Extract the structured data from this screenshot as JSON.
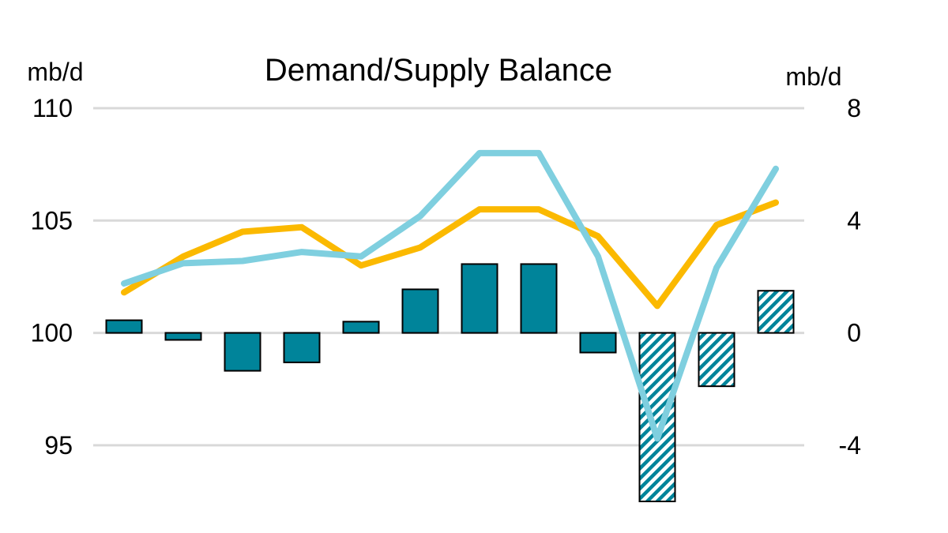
{
  "chart_data": {
    "type": "bar+line",
    "title": "Demand/Supply Balance",
    "left_axis": {
      "unit": "mb/d",
      "ylim": [
        92.5,
        110
      ],
      "ticks": [
        95,
        100,
        105,
        110
      ],
      "tick_labels": [
        "95",
        "100",
        "105",
        "110"
      ]
    },
    "right_axis": {
      "unit": "mb/d",
      "ylim": [
        -6,
        8
      ],
      "ticks": [
        -4,
        0,
        4,
        8
      ],
      "tick_labels": [
        "-4",
        "0",
        "4",
        "8"
      ]
    },
    "grid": true,
    "categories_count": 12,
    "series": [
      {
        "kind": "bar",
        "axis": "right",
        "color": "#00849a",
        "values": [
          0.45,
          -0.25,
          -1.35,
          -1.05,
          0.4,
          1.55,
          2.45,
          2.45,
          -0.7,
          -6.0,
          -1.9,
          1.5
        ],
        "hatched": [
          false,
          false,
          false,
          false,
          false,
          false,
          false,
          false,
          false,
          true,
          true,
          true
        ]
      },
      {
        "kind": "line",
        "axis": "left",
        "color": "#fbb900",
        "values": [
          101.8,
          103.4,
          104.5,
          104.7,
          103.0,
          103.8,
          105.5,
          105.5,
          104.3,
          101.2,
          104.8,
          105.8
        ]
      },
      {
        "kind": "line",
        "axis": "left",
        "color": "#7fcfdf",
        "values": [
          102.2,
          103.1,
          103.2,
          103.6,
          103.4,
          105.2,
          108.0,
          108.0,
          103.4,
          95.3,
          102.9,
          107.3
        ]
      }
    ]
  }
}
